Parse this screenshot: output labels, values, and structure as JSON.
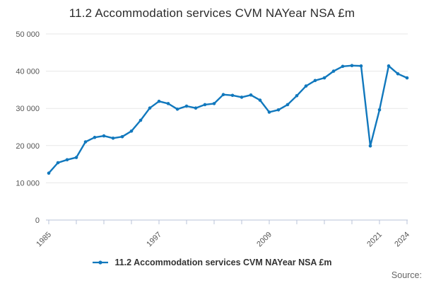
{
  "title": "11.2 Accommodation services CVM NAYear NSA £m",
  "source_label": "Source:",
  "legend": {
    "label": "11.2 Accommodation services CVM NAYear NSA £m"
  },
  "chart_data": {
    "type": "line",
    "title": "11.2 Accommodation services CVM NAYear NSA £m",
    "x": [
      1985,
      1986,
      1987,
      1988,
      1989,
      1990,
      1991,
      1992,
      1993,
      1994,
      1995,
      1996,
      1997,
      1998,
      1999,
      2000,
      2001,
      2002,
      2003,
      2004,
      2005,
      2006,
      2007,
      2008,
      2009,
      2010,
      2011,
      2012,
      2013,
      2014,
      2015,
      2016,
      2017,
      2018,
      2019,
      2020,
      2021,
      2022,
      2023,
      2024
    ],
    "series": [
      {
        "name": "11.2 Accommodation services CVM NAYear NSA £m",
        "values": [
          12600,
          15400,
          16200,
          16800,
          21000,
          22200,
          22600,
          22000,
          22400,
          23900,
          26800,
          30100,
          31900,
          31300,
          29800,
          30600,
          30100,
          31000,
          31300,
          33700,
          33500,
          33000,
          33600,
          32200,
          29000,
          29600,
          31000,
          33400,
          36000,
          37500,
          38200,
          40000,
          41300,
          41500,
          41400,
          19900,
          29600,
          41400,
          39300,
          38200
        ]
      }
    ],
    "xlabel": "",
    "ylabel": "",
    "ylim": [
      0,
      50000
    ],
    "ytick_values": [
      0,
      10000,
      20000,
      30000,
      40000,
      50000
    ],
    "ytick_labels": [
      "0",
      "10 000",
      "20 000",
      "30 000",
      "40 000",
      "50 000"
    ],
    "xtick_step_years": 3,
    "xtick_labeled_years": [
      1985,
      1997,
      2009,
      2021,
      2024
    ],
    "grid": "horizontal",
    "legend_position": "bottom",
    "line_color": "#1178bd",
    "grid_color": "#e7e7e7",
    "axis_color": "#b9c3d9",
    "tick_label_color": "#555"
  }
}
